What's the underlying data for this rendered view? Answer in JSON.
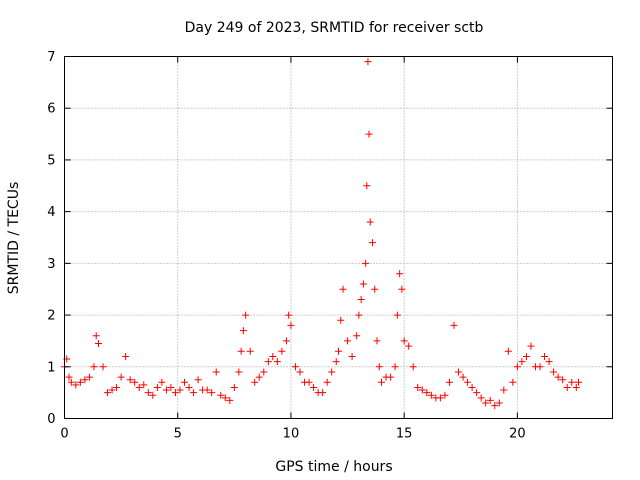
{
  "chart_data": {
    "type": "scatter",
    "title": "Day 249 of 2023, SRMTID for receiver sctb",
    "xlabel": "GPS time / hours",
    "ylabel": "SRMTID / TECUs",
    "xlim": [
      0,
      24.2
    ],
    "ylim": [
      0,
      7
    ],
    "xticks": [
      0,
      5,
      10,
      15,
      20
    ],
    "yticks": [
      0,
      1,
      2,
      3,
      4,
      5,
      6,
      7
    ],
    "grid": true,
    "marker": "+",
    "color": "#ff0000",
    "series": [
      {
        "name": "SRMTID",
        "x": [
          0.0,
          0.1,
          0.2,
          0.3,
          0.5,
          0.7,
          0.9,
          1.1,
          1.3,
          1.4,
          1.5,
          1.7,
          1.9,
          2.1,
          2.3,
          2.5,
          2.7,
          2.9,
          3.1,
          3.3,
          3.5,
          3.7,
          3.9,
          4.1,
          4.3,
          4.5,
          4.7,
          4.9,
          5.1,
          5.3,
          5.5,
          5.7,
          5.9,
          6.1,
          6.3,
          6.5,
          6.7,
          6.9,
          7.1,
          7.3,
          7.5,
          7.7,
          7.8,
          7.9,
          8.0,
          8.2,
          8.4,
          8.6,
          8.8,
          9.0,
          9.2,
          9.4,
          9.6,
          9.8,
          9.9,
          10.0,
          10.2,
          10.4,
          10.6,
          10.8,
          11.0,
          11.2,
          11.4,
          11.6,
          11.8,
          12.0,
          12.1,
          12.2,
          12.3,
          12.5,
          12.7,
          12.9,
          13.0,
          13.1,
          13.2,
          13.3,
          13.35,
          13.4,
          13.45,
          13.5,
          13.6,
          13.7,
          13.8,
          13.9,
          14.0,
          14.2,
          14.4,
          14.6,
          14.7,
          14.8,
          14.9,
          15.0,
          15.2,
          15.4,
          15.6,
          15.8,
          16.0,
          16.2,
          16.4,
          16.6,
          16.8,
          17.0,
          17.2,
          17.4,
          17.6,
          17.8,
          18.0,
          18.2,
          18.4,
          18.6,
          18.8,
          19.0,
          19.2,
          19.4,
          19.6,
          19.8,
          20.0,
          20.2,
          20.4,
          20.6,
          20.8,
          21.0,
          21.2,
          21.4,
          21.6,
          21.8,
          22.0,
          22.2,
          22.4,
          22.6,
          22.7
        ],
        "y": [
          1.0,
          1.15,
          0.8,
          0.7,
          0.65,
          0.7,
          0.75,
          0.8,
          1.0,
          1.6,
          1.45,
          1.0,
          0.5,
          0.55,
          0.6,
          0.8,
          1.2,
          0.75,
          0.7,
          0.6,
          0.65,
          0.5,
          0.45,
          0.6,
          0.7,
          0.55,
          0.6,
          0.5,
          0.55,
          0.7,
          0.6,
          0.5,
          0.75,
          0.55,
          0.55,
          0.5,
          0.9,
          0.45,
          0.4,
          0.35,
          0.6,
          0.9,
          1.3,
          1.7,
          2.0,
          1.3,
          0.7,
          0.8,
          0.9,
          1.1,
          1.2,
          1.1,
          1.3,
          1.5,
          2.0,
          1.8,
          1.0,
          0.9,
          0.7,
          0.7,
          0.6,
          0.5,
          0.5,
          0.7,
          0.9,
          1.1,
          1.3,
          1.9,
          2.5,
          1.5,
          1.2,
          1.6,
          2.0,
          2.3,
          2.6,
          3.0,
          4.5,
          6.9,
          5.5,
          3.8,
          3.4,
          2.5,
          1.5,
          1.0,
          0.7,
          0.8,
          0.8,
          1.0,
          2.0,
          2.8,
          2.5,
          1.5,
          1.4,
          1.0,
          0.6,
          0.55,
          0.5,
          0.45,
          0.4,
          0.4,
          0.45,
          0.7,
          1.8,
          0.9,
          0.8,
          0.7,
          0.6,
          0.5,
          0.4,
          0.3,
          0.35,
          0.25,
          0.3,
          0.55,
          1.3,
          0.7,
          1.0,
          1.1,
          1.2,
          1.4,
          1.0,
          1.0,
          1.2,
          1.1,
          0.9,
          0.8,
          0.75,
          0.6,
          0.7,
          0.6,
          0.7
        ]
      }
    ]
  }
}
